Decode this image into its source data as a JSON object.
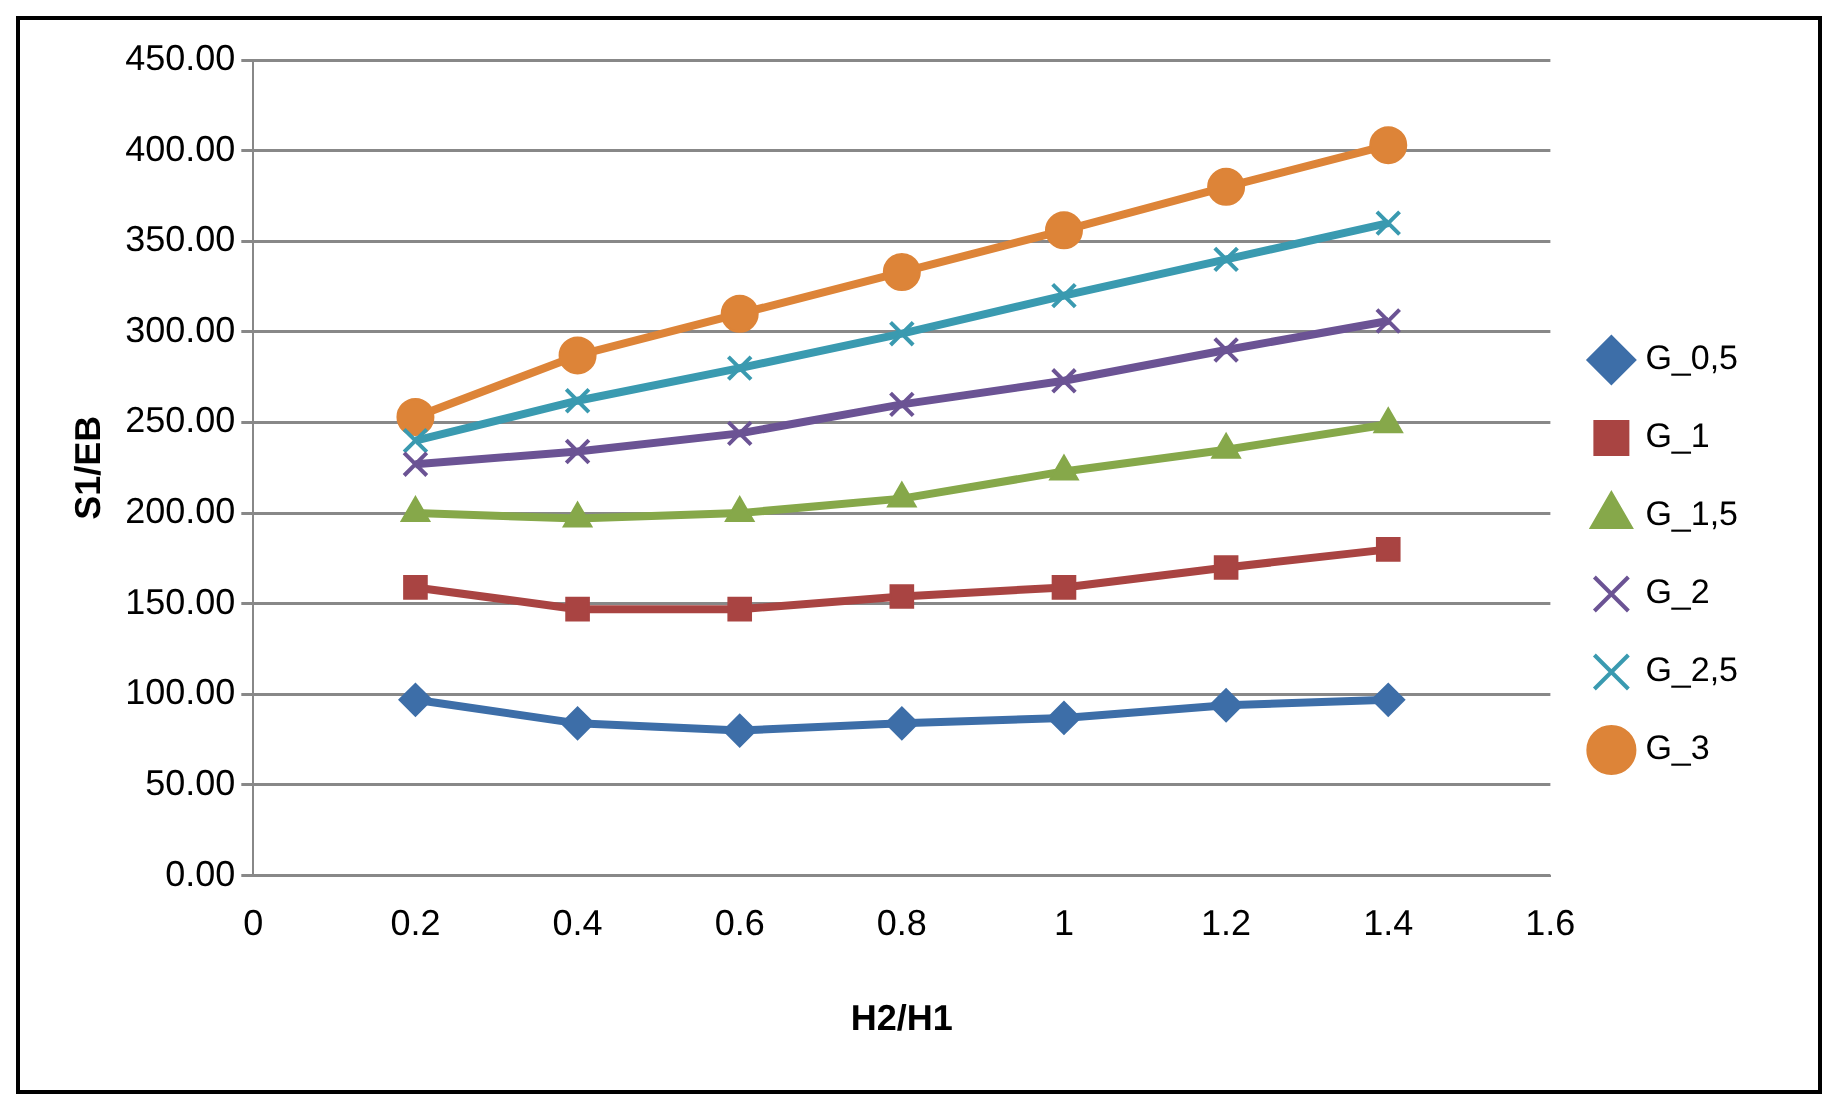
{
  "chart_data": {
    "type": "line",
    "xlabel": "H2/H1",
    "ylabel": "S1/EB",
    "x": [
      0.2,
      0.4,
      0.6,
      0.8,
      1,
      1.2,
      1.4
    ],
    "xlim": [
      0,
      1.6
    ],
    "xticks": [
      0,
      0.2,
      0.4,
      0.6,
      0.8,
      1,
      1.2,
      1.4,
      1.6
    ],
    "ylim": [
      0,
      450
    ],
    "yticks": [
      {
        "value": 0,
        "label": "0.00"
      },
      {
        "value": 50,
        "label": "50.00"
      },
      {
        "value": 100,
        "label": "100.00"
      },
      {
        "value": 150,
        "label": "150.00"
      },
      {
        "value": 200,
        "label": "200.00"
      },
      {
        "value": 250,
        "label": "250.00"
      },
      {
        "value": 300,
        "label": "300.00"
      },
      {
        "value": 350,
        "label": "350.00"
      },
      {
        "value": 400,
        "label": "400.00"
      },
      {
        "value": 450,
        "label": "450.00"
      }
    ],
    "grid": "y",
    "legend": "right",
    "line_style": "solid",
    "series": [
      {
        "name": "G_0,5",
        "color": "#3d6ea8",
        "marker": "diamond",
        "values": [
          97,
          84,
          80,
          84,
          87,
          94,
          97
        ]
      },
      {
        "name": "G_1",
        "color": "#a94442",
        "marker": "square",
        "values": [
          159,
          147,
          147,
          154,
          159,
          170,
          180
        ]
      },
      {
        "name": "G_1,5",
        "color": "#86a84a",
        "marker": "triangle",
        "values": [
          200,
          197,
          200,
          208,
          223,
          235,
          249
        ]
      },
      {
        "name": "G_2",
        "color": "#6b5394",
        "marker": "cross",
        "values": [
          227,
          234,
          244,
          260,
          273,
          290,
          306
        ]
      },
      {
        "name": "G_2,5",
        "color": "#3a9ab0",
        "marker": "cross",
        "values": [
          240,
          262,
          280,
          299,
          320,
          340,
          360
        ]
      },
      {
        "name": "G_3",
        "color": "#dd8438",
        "marker": "circle",
        "values": [
          253,
          287,
          310,
          333,
          356,
          380,
          403
        ]
      }
    ]
  }
}
